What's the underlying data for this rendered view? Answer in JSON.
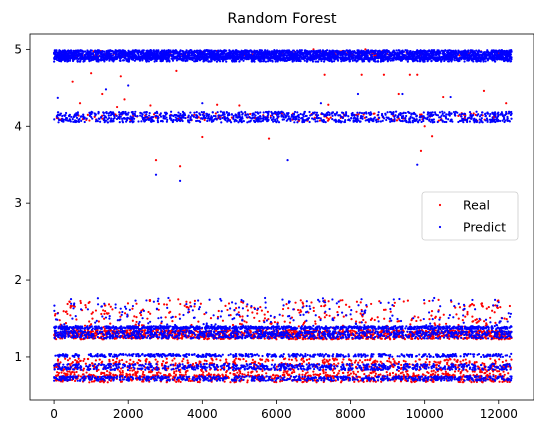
{
  "chart_data": {
    "type": "scatter",
    "title": "Random Forest",
    "xlabel": "",
    "ylabel": "",
    "xlim": [
      -650,
      12950
    ],
    "ylim": [
      0.44,
      5.2
    ],
    "x_ticks": [
      0,
      2000,
      4000,
      6000,
      8000,
      10000,
      12000
    ],
    "y_ticks": [
      1,
      2,
      3,
      4,
      5
    ],
    "grid": false,
    "legend_position": "right",
    "n_points_approx": 12300,
    "series": [
      {
        "name": "Real",
        "color": "#ff0000",
        "bands": [
          {
            "y": 4.94,
            "spread": 0.04,
            "count": 180
          },
          {
            "y": 4.12,
            "spread": 0.05,
            "count": 140
          },
          {
            "y": 1.55,
            "spread": 0.2,
            "count": 360
          },
          {
            "y": 1.29,
            "spread": 0.06,
            "count": 1200
          },
          {
            "y": 0.86,
            "spread": 0.12,
            "count": 800
          },
          {
            "y": 0.72,
            "spread": 0.05,
            "count": 500
          }
        ],
        "values": [
          [
            500,
            4.58
          ],
          [
            700,
            4.3
          ],
          [
            1000,
            4.69
          ],
          [
            1300,
            4.42
          ],
          [
            1700,
            4.25
          ],
          [
            1800,
            4.65
          ],
          [
            1900,
            4.35
          ],
          [
            2600,
            4.27
          ],
          [
            2750,
            3.56
          ],
          [
            3300,
            4.72
          ],
          [
            3400,
            3.48
          ],
          [
            4000,
            3.86
          ],
          [
            4400,
            4.28
          ],
          [
            5000,
            4.27
          ],
          [
            5800,
            3.84
          ],
          [
            7000,
            5.0
          ],
          [
            7300,
            4.67
          ],
          [
            7400,
            4.28
          ],
          [
            8300,
            4.67
          ],
          [
            8400,
            5.0
          ],
          [
            8900,
            4.67
          ],
          [
            9300,
            4.42
          ],
          [
            9600,
            4.67
          ],
          [
            9800,
            4.67
          ],
          [
            9900,
            3.68
          ],
          [
            10000,
            4.0
          ],
          [
            10200,
            3.87
          ],
          [
            10500,
            4.38
          ],
          [
            11600,
            4.46
          ],
          [
            12200,
            4.3
          ]
        ]
      },
      {
        "name": "Predict",
        "color": "#0000ff",
        "bands": [
          {
            "y": 4.93,
            "spread": 0.06,
            "count": 3200
          },
          {
            "y": 4.87,
            "spread": 0.03,
            "count": 800
          },
          {
            "y": 4.12,
            "spread": 0.07,
            "count": 1100
          },
          {
            "y": 1.38,
            "spread": 0.02,
            "count": 900
          },
          {
            "y": 1.29,
            "spread": 0.05,
            "count": 1000
          },
          {
            "y": 1.55,
            "spread": 0.22,
            "count": 280
          },
          {
            "y": 1.02,
            "spread": 0.02,
            "count": 500
          },
          {
            "y": 0.87,
            "spread": 0.04,
            "count": 700
          },
          {
            "y": 0.72,
            "spread": 0.03,
            "count": 700
          }
        ],
        "values": [
          [
            100,
            4.37
          ],
          [
            1400,
            4.48
          ],
          [
            2000,
            4.53
          ],
          [
            2750,
            3.37
          ],
          [
            3400,
            3.29
          ],
          [
            4000,
            4.3
          ],
          [
            6300,
            3.56
          ],
          [
            7200,
            4.3
          ],
          [
            8200,
            4.42
          ],
          [
            9400,
            4.42
          ],
          [
            9800,
            3.5
          ],
          [
            10100,
            4.17
          ],
          [
            10700,
            4.38
          ]
        ]
      }
    ]
  }
}
